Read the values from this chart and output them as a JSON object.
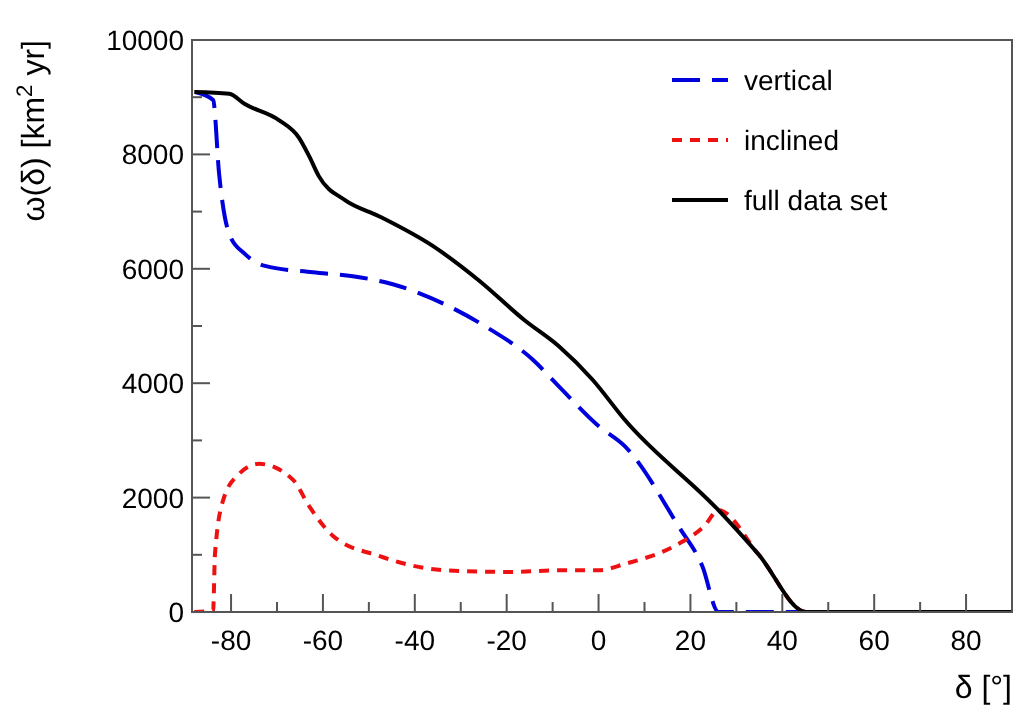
{
  "chart_data": {
    "type": "line",
    "xlabel": "δ [°]",
    "ylabel": "ω(δ)  [km$^{2}$ yr]",
    "xlim": [
      -88.5,
      90
    ],
    "ylim": [
      0,
      10000
    ],
    "xticks": [
      -80,
      {
        "value": -70,
        "label": null
      },
      -60,
      {
        "value": -50,
        "label": null
      },
      -40,
      {
        "value": -30,
        "label": null
      },
      -20,
      {
        "value": -10,
        "label": null
      },
      0,
      {
        "value": 10,
        "label": null
      },
      20,
      {
        "value": 30,
        "label": null
      },
      40,
      {
        "value": 50,
        "label": null
      },
      60,
      {
        "value": 70,
        "label": null
      },
      80
    ],
    "yticks": [
      0,
      {
        "value": 1000,
        "label": null
      },
      2000,
      {
        "value": 3000,
        "label": null
      },
      4000,
      {
        "value": 5000,
        "label": null
      },
      6000,
      {
        "value": 7000,
        "label": null
      },
      8000,
      {
        "value": 9000,
        "label": null
      },
      10000
    ],
    "legend": "top right",
    "grid": false,
    "series": [
      {
        "name": "vertical",
        "color": "#0000dd",
        "line_style": "dashed",
        "x": [
          -87.8,
          -83.9,
          -82.6,
          -80.4,
          -77,
          -72.6,
          -62.2,
          -53.5,
          -44.8,
          -33.5,
          -24.8,
          -14.3,
          -8.7,
          0,
          5.7,
          17.4,
          22.6,
          26.1,
          90
        ],
        "values": [
          9090,
          8950,
          7660,
          6610,
          6260,
          6050,
          5940,
          5870,
          5730,
          5380,
          5000,
          4410,
          3950,
          3250,
          2900,
          1500,
          800,
          0,
          0
        ]
      },
      {
        "name": "inclined",
        "color": "#ee1111",
        "line_style": "dotted",
        "x": [
          -88,
          -83.9,
          -83.5,
          -81.7,
          -78.3,
          -73.9,
          -66.5,
          -63,
          -57.8,
          -47.8,
          -33.5,
          -18.7,
          -8.7,
          0,
          5.7,
          17.4,
          23,
          26.1,
          34.8,
          45.2,
          90
        ],
        "values": [
          0,
          30,
          1010,
          1960,
          2410,
          2590,
          2310,
          1850,
          1330,
          980,
          730,
          700,
          730,
          730,
          840,
          1190,
          1500,
          1780,
          1010,
          0,
          0
        ]
      },
      {
        "name": "full data set",
        "color": "#000000",
        "line_style": "solid",
        "x": [
          -88,
          -80.4,
          -77,
          -69.6,
          -65.2,
          -63,
          -60.9,
          -55.2,
          -47.8,
          -36.1,
          -26.1,
          -16.1,
          -8.7,
          -1.3,
          5.7,
          26.1,
          34.8,
          45.2,
          90
        ],
        "values": [
          9090,
          9060,
          8880,
          8600,
          8290,
          7970,
          7620,
          7200,
          6920,
          6400,
          5800,
          5100,
          4650,
          4060,
          3360,
          1780,
          1010,
          0,
          0
        ]
      }
    ]
  }
}
